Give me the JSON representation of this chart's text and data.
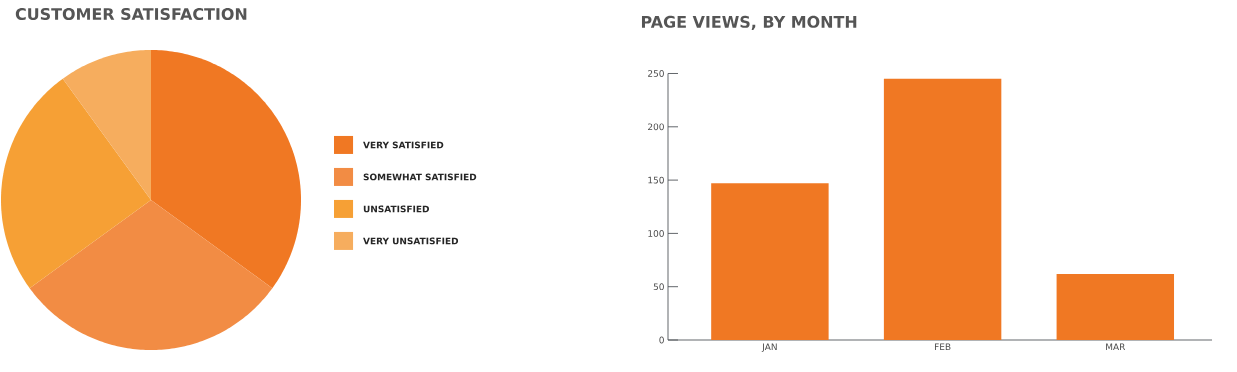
{
  "chart_data": [
    {
      "type": "pie",
      "title": "CUSTOMER SATISFACTION",
      "categories": [
        "VERY SATISFIED",
        "SOMEWHAT SATISFIED",
        "UNSATISFIED",
        "VERY UNSATISFIED"
      ],
      "values": [
        35,
        30,
        25,
        10
      ],
      "colors": [
        "#f07823",
        "#f28c44",
        "#f6a035",
        "#f6ad5e"
      ],
      "legend": "right"
    },
    {
      "type": "bar",
      "title": "PAGE VIEWS, BY MONTH",
      "categories": [
        "JAN",
        "FEB",
        "MAR"
      ],
      "values": [
        147,
        245,
        62
      ],
      "color": "#f07823",
      "ylim": [
        0,
        250
      ],
      "yticks": [
        0,
        50,
        100,
        150,
        200,
        250
      ]
    }
  ]
}
